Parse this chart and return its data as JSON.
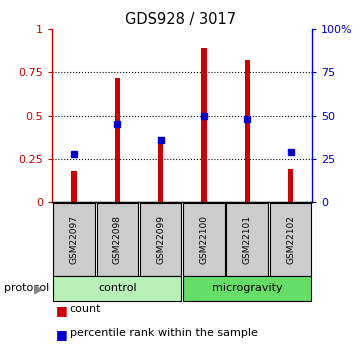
{
  "title": "GDS928 / 3017",
  "samples": [
    "GSM22097",
    "GSM22098",
    "GSM22099",
    "GSM22100",
    "GSM22101",
    "GSM22102"
  ],
  "red_values": [
    0.18,
    0.72,
    0.34,
    0.89,
    0.82,
    0.19
  ],
  "blue_values": [
    0.28,
    0.45,
    0.36,
    0.5,
    0.48,
    0.29
  ],
  "groups": [
    {
      "label": "control",
      "start": 0,
      "end": 3,
      "color": "#b8f0b8"
    },
    {
      "label": "microgravity",
      "start": 3,
      "end": 6,
      "color": "#66dd66"
    }
  ],
  "protocol_label": "protocol",
  "ylim": [
    0,
    1.0
  ],
  "yticks_left": [
    0,
    0.25,
    0.5,
    0.75,
    1.0
  ],
  "ytick_labels_left": [
    "0",
    "0.25",
    "0.5",
    "0.75",
    "1"
  ],
  "yticks_right": [
    0,
    25,
    50,
    75,
    100
  ],
  "ytick_labels_right": [
    "0",
    "25",
    "50",
    "75",
    "100%"
  ],
  "red_color": "#cc0000",
  "blue_color": "#0000cc",
  "bar_width": 0.12,
  "blue_marker_size": 5,
  "background_color": "#ffffff",
  "sample_box_color": "#cccccc",
  "legend_count": "count",
  "legend_percentile": "percentile rank within the sample"
}
